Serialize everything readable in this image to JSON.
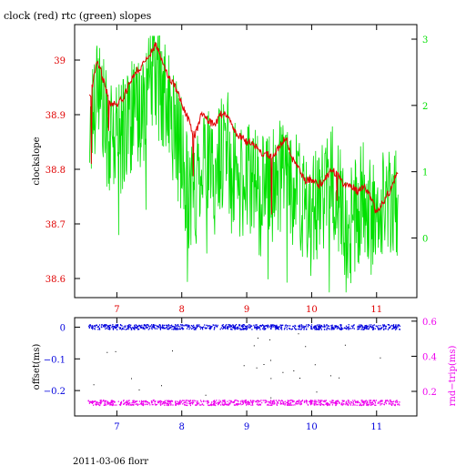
{
  "title": "clock (red) rtc (green) slopes",
  "footer": "2011-03-06 florr",
  "colors": {
    "red": "#e00000",
    "green": "#00e000",
    "blue": "#0000dd",
    "magenta": "#ee00ee",
    "black": "#000000"
  },
  "chart_data": [
    {
      "type": "line",
      "title": "clock (red) rtc (green) slopes",
      "xlim": [
        6.35,
        11.62
      ],
      "x_ticks": [
        7,
        8,
        9,
        10,
        11
      ],
      "ylabel": "clockslope",
      "ylim": [
        38.565,
        39.065
      ],
      "y_ticks": [
        38.6,
        38.7,
        38.8,
        38.9,
        39
      ],
      "y_tick_labels": [
        "38.6",
        "38.7",
        "38.8",
        "38.9",
        "39"
      ],
      "y2lim": [
        -0.9,
        3.22
      ],
      "y2_ticks": [
        0,
        1,
        2,
        3
      ],
      "y2_tick_labels": [
        "0",
        "1",
        "2",
        "3"
      ],
      "series": [
        {
          "name": "clock",
          "axis": "left",
          "color": "#e00000",
          "x": [
            6.6,
            6.7,
            6.8,
            6.9,
            7.0,
            7.1,
            7.2,
            7.3,
            7.4,
            7.5,
            7.6,
            7.7,
            7.8,
            7.9,
            8.0,
            8.1,
            8.2,
            8.3,
            8.4,
            8.5,
            8.6,
            8.7,
            8.8,
            8.9,
            9.0,
            9.1,
            9.2,
            9.3,
            9.4,
            9.5,
            9.6,
            9.7,
            9.8,
            9.9,
            10.0,
            10.1,
            10.2,
            10.3,
            10.4,
            10.5,
            10.6,
            10.7,
            10.8,
            10.9,
            11.0,
            11.1,
            11.2,
            11.3
          ],
          "y": [
            38.94,
            39.0,
            38.96,
            38.92,
            38.92,
            38.93,
            38.96,
            38.98,
            38.99,
            39.01,
            39.03,
            39.0,
            38.97,
            38.95,
            38.92,
            38.89,
            38.86,
            38.9,
            38.89,
            38.88,
            38.9,
            38.9,
            38.87,
            38.86,
            38.85,
            38.85,
            38.83,
            38.83,
            38.82,
            38.84,
            38.86,
            38.82,
            38.8,
            38.78,
            38.78,
            38.77,
            38.78,
            38.8,
            38.79,
            38.77,
            38.77,
            38.76,
            38.77,
            38.75,
            38.72,
            38.74,
            38.76,
            38.79
          ]
        },
        {
          "name": "rtc",
          "axis": "right",
          "color": "#00e000",
          "x": [
            6.6,
            6.7,
            6.8,
            6.9,
            7.0,
            7.1,
            7.2,
            7.3,
            7.4,
            7.5,
            7.6,
            7.7,
            7.8,
            7.9,
            8.0,
            8.1,
            8.2,
            8.3,
            8.4,
            8.5,
            8.6,
            8.7,
            8.8,
            8.9,
            9.0,
            9.1,
            9.2,
            9.3,
            9.4,
            9.5,
            9.6,
            9.7,
            9.8,
            9.9,
            10.0,
            10.1,
            10.2,
            10.3,
            10.4,
            10.5,
            10.6,
            10.7,
            10.8,
            10.9,
            11.0,
            11.1,
            11.2,
            11.3
          ],
          "y": [
            1.6,
            2.5,
            1.8,
            1.4,
            1.5,
            1.6,
            1.9,
            1.7,
            2.0,
            2.3,
            2.6,
            2.2,
            1.9,
            1.6,
            1.2,
            0.7,
            0.6,
            1.3,
            1.1,
            0.8,
            1.3,
            1.4,
            0.9,
            0.8,
            0.9,
            1.0,
            0.6,
            0.7,
            0.8,
            0.9,
            1.2,
            0.8,
            0.6,
            0.4,
            0.3,
            0.5,
            0.7,
            0.9,
            0.6,
            0.3,
            0.2,
            0.4,
            0.6,
            0.3,
            0.4,
            0.5,
            0.6,
            0.7
          ]
        }
      ]
    },
    {
      "type": "scatter",
      "xlim": [
        6.35,
        11.62
      ],
      "x_ticks": [
        7,
        8,
        9,
        10,
        11
      ],
      "ylabel": "offset(ms)",
      "ylim": [
        -0.28,
        0.03
      ],
      "y_ticks": [
        0,
        -0.1,
        -0.2
      ],
      "y_tick_labels": [
        "0",
        "−0.1",
        "−0.2"
      ],
      "y2label": "rnd−trip(ms)",
      "y2lim": [
        0.06,
        0.62
      ],
      "y2_ticks": [
        0.2,
        0.4,
        0.6
      ],
      "y2_tick_labels": [
        "0.2",
        "0.4",
        "0.6"
      ],
      "series": [
        {
          "name": "offset",
          "axis": "left",
          "color": "#0000dd",
          "x_range": [
            6.55,
            11.35
          ],
          "y": 0.0,
          "spread": 0.008
        },
        {
          "name": "rnd-trip",
          "axis": "right",
          "color": "#ee00ee",
          "x_range": [
            6.55,
            11.35
          ],
          "y": 0.135,
          "spread": 0.015
        }
      ]
    }
  ]
}
